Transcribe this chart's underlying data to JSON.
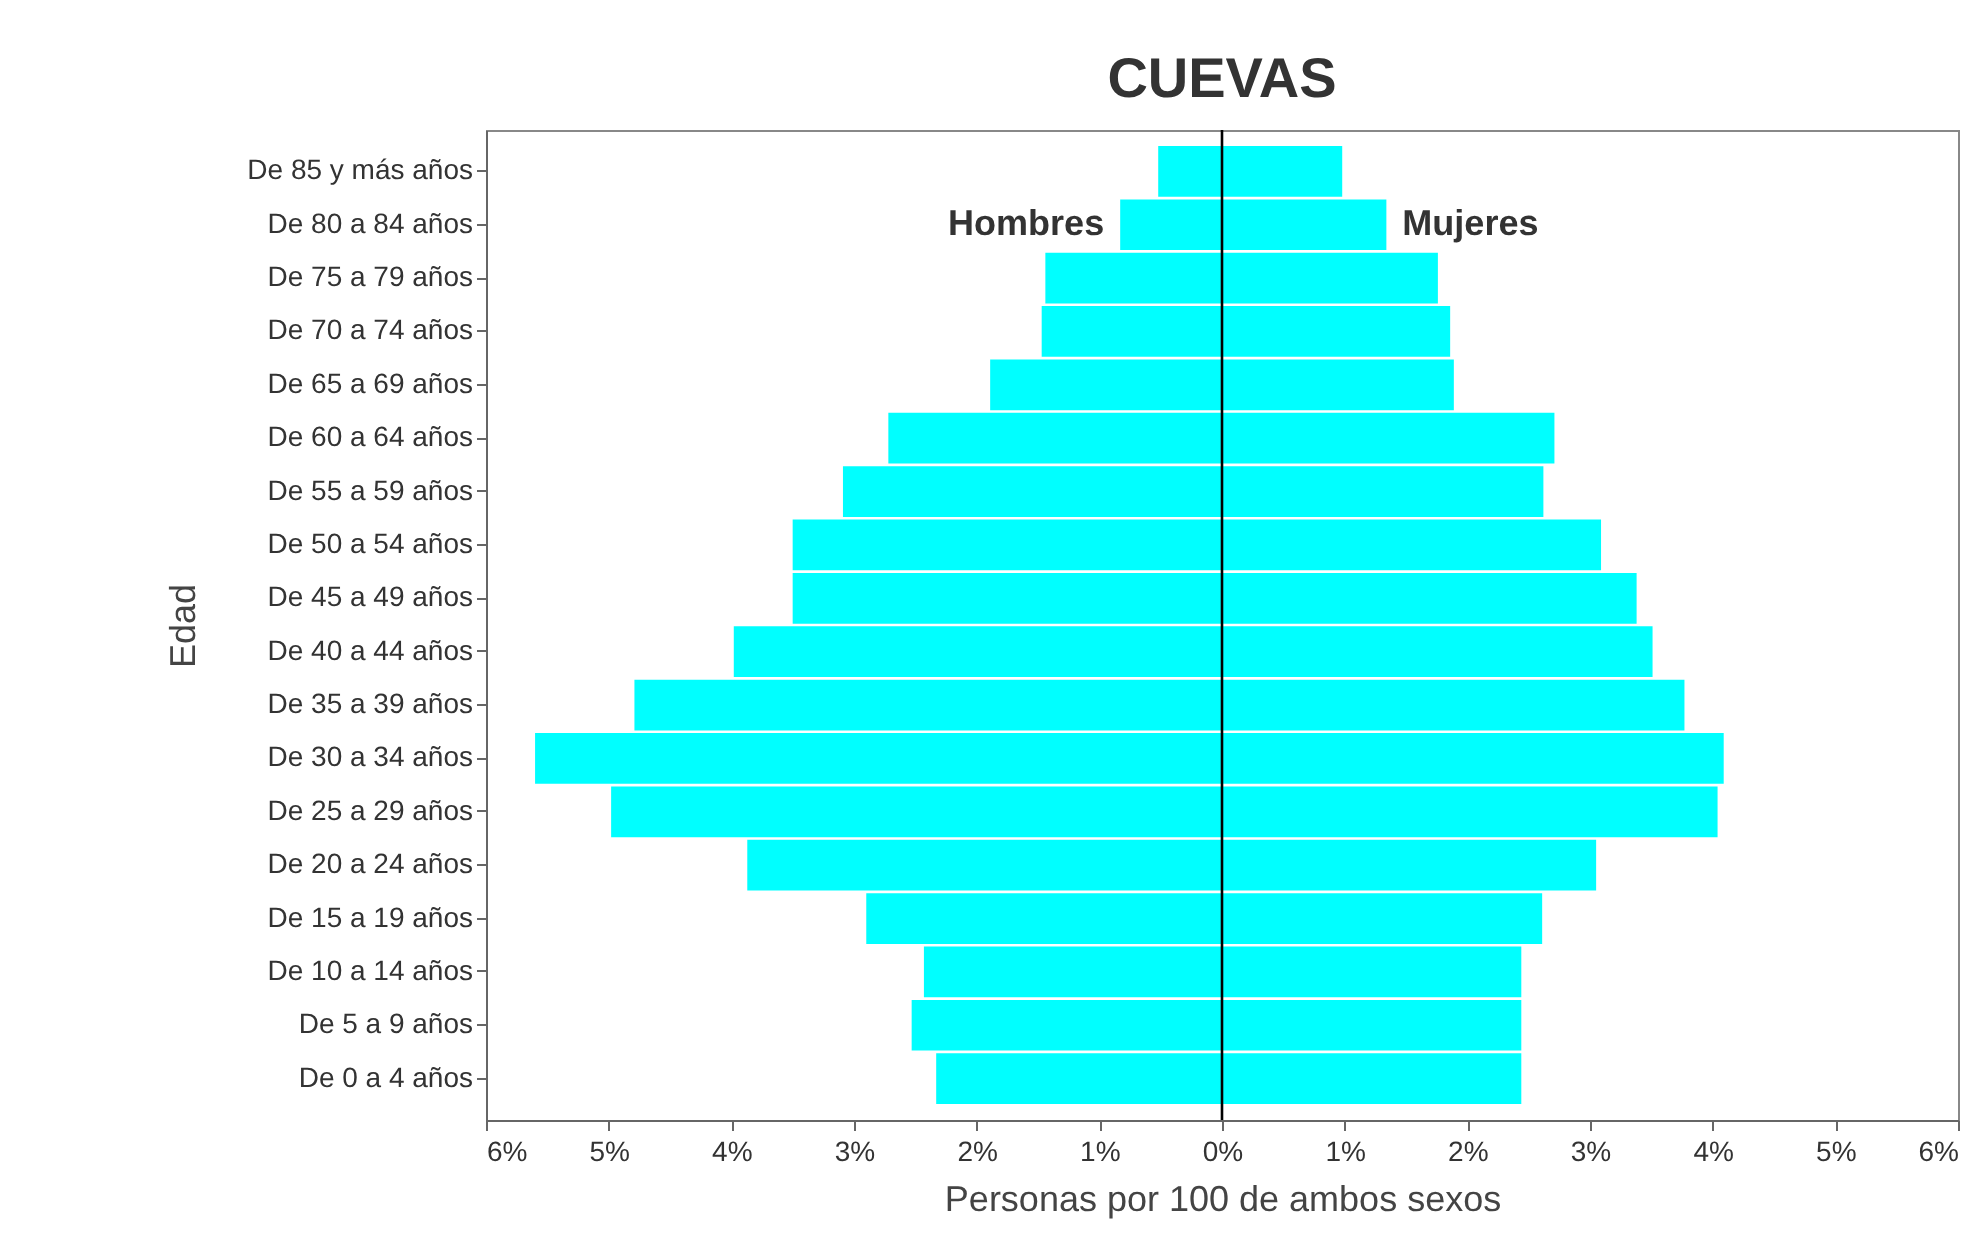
{
  "chart_data": {
    "type": "bar",
    "orientation": "horizontal",
    "title": "CUEVAS",
    "xlabel": "Personas por 100 de ambos sexos",
    "ylabel": "Edad",
    "categories": [
      "De 85 y más años",
      "De 80 a 84 años",
      "De 75 a 79 años",
      "De 70 a 74 años",
      "De 65 a 69 años",
      "De 60 a 64 años",
      "De 55 a 59 años",
      "De 50 a 54 años",
      "De 45 a 49 años",
      "De 40 a 44 años",
      "De 35 a 39 años",
      "De 30 a 34 años",
      "De 25 a 29 años",
      "De 20 a 24 años",
      "De 15 a 19 años",
      "De 10 a 14 años",
      "De 5 a 9 años",
      "De 0 a 4 años"
    ],
    "series": [
      {
        "name": "Hombres",
        "color": "#00ffff",
        "values": [
          -0.52,
          -0.83,
          -1.44,
          -1.47,
          -1.89,
          -2.72,
          -3.09,
          -3.5,
          -3.5,
          -3.98,
          -4.79,
          -5.6,
          -4.98,
          -3.87,
          -2.9,
          -2.43,
          -2.53,
          -2.33
        ]
      },
      {
        "name": "Mujeres",
        "color": "#00ffff",
        "values": [
          0.98,
          1.34,
          1.76,
          1.86,
          1.89,
          2.71,
          2.62,
          3.09,
          3.38,
          3.51,
          3.77,
          4.09,
          4.04,
          3.05,
          2.61,
          2.44,
          2.44,
          2.44
        ]
      }
    ],
    "xlim": [
      -6,
      6
    ],
    "xticks": [
      {
        "value": -6,
        "label": "6%"
      },
      {
        "value": -5,
        "label": "5%"
      },
      {
        "value": -4,
        "label": "4%"
      },
      {
        "value": -3,
        "label": "3%"
      },
      {
        "value": -2,
        "label": "2%"
      },
      {
        "value": -1,
        "label": "1%"
      },
      {
        "value": 0,
        "label": "0%"
      },
      {
        "value": 1,
        "label": "1%"
      },
      {
        "value": 2,
        "label": "2%"
      },
      {
        "value": 3,
        "label": "3%"
      },
      {
        "value": 4,
        "label": "4%"
      },
      {
        "value": 5,
        "label": "5%"
      },
      {
        "value": 6,
        "label": "6%"
      }
    ],
    "ref_lines": [
      {
        "axis": "x",
        "value": 0,
        "color": "#000000"
      }
    ],
    "grid": false,
    "stacked": true
  }
}
